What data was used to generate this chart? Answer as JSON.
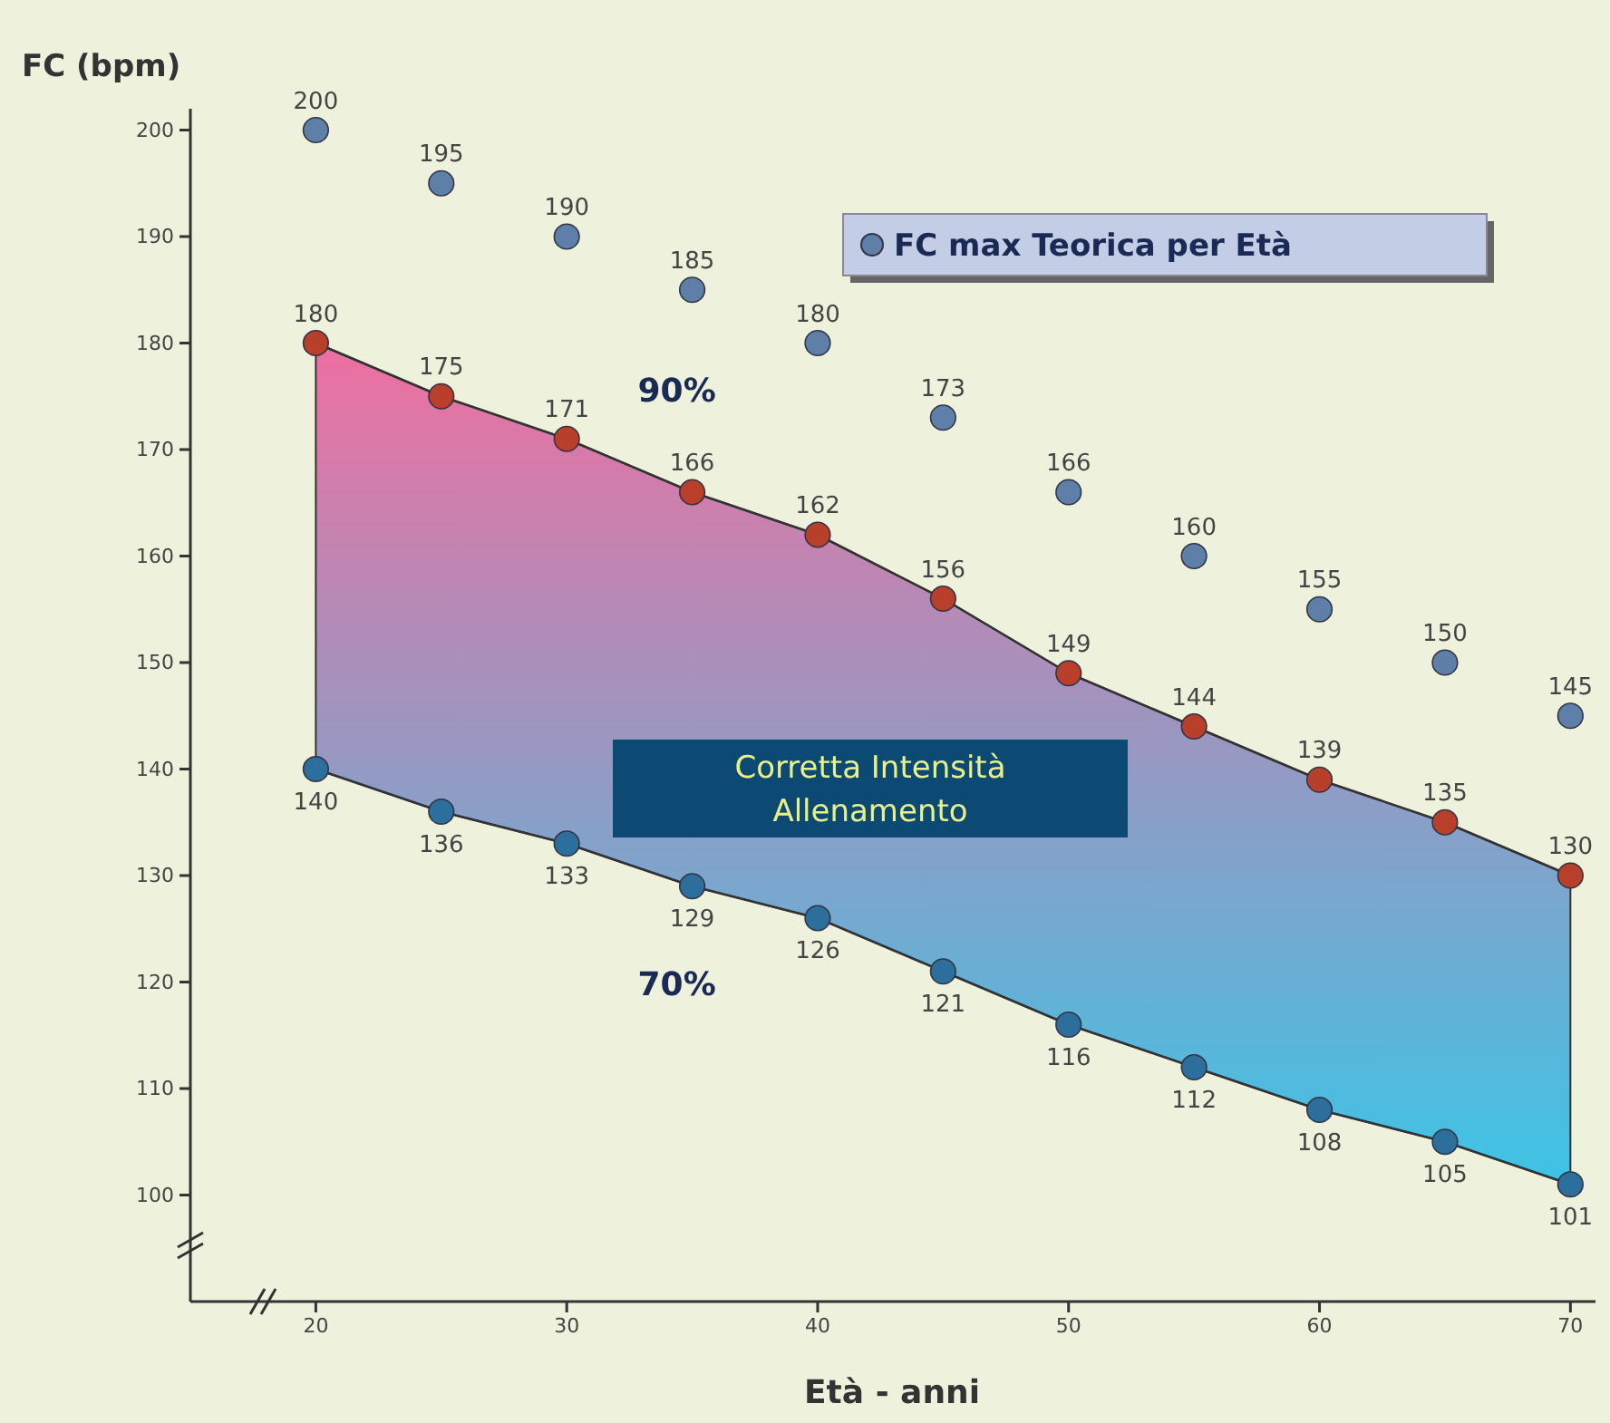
{
  "chart_data": {
    "type": "scatter",
    "ylabel": "FC (bpm)",
    "xlabel": "Età - anni",
    "x": [
      20,
      25,
      30,
      35,
      40,
      45,
      50,
      55,
      60,
      65,
      70
    ],
    "xlim": [
      15,
      71
    ],
    "ylim": [
      90,
      202
    ],
    "xticks": [
      20,
      30,
      40,
      50,
      60,
      70
    ],
    "yticks": [
      100,
      110,
      120,
      130,
      140,
      150,
      160,
      170,
      180,
      190,
      200
    ],
    "series": [
      {
        "name": "FC max Teorica per Età",
        "color": "#5d7fa8",
        "values": [
          200,
          195,
          190,
          185,
          180,
          173,
          166,
          160,
          155,
          150,
          145
        ]
      },
      {
        "name": "90%",
        "type": "area",
        "color": "#b8402a",
        "values": [
          180,
          175,
          171,
          166,
          162,
          156,
          149,
          144,
          139,
          135,
          130
        ]
      },
      {
        "name": "70%",
        "type": "line",
        "color": "#2d6f9c",
        "values": [
          140,
          136,
          133,
          129,
          126,
          121,
          116,
          112,
          108,
          105,
          101
        ]
      }
    ],
    "marker": "circle",
    "data_labels": true,
    "grid": false,
    "legend": "top right",
    "annotations": [
      "Corretta Intensità Allenamento"
    ]
  }
}
